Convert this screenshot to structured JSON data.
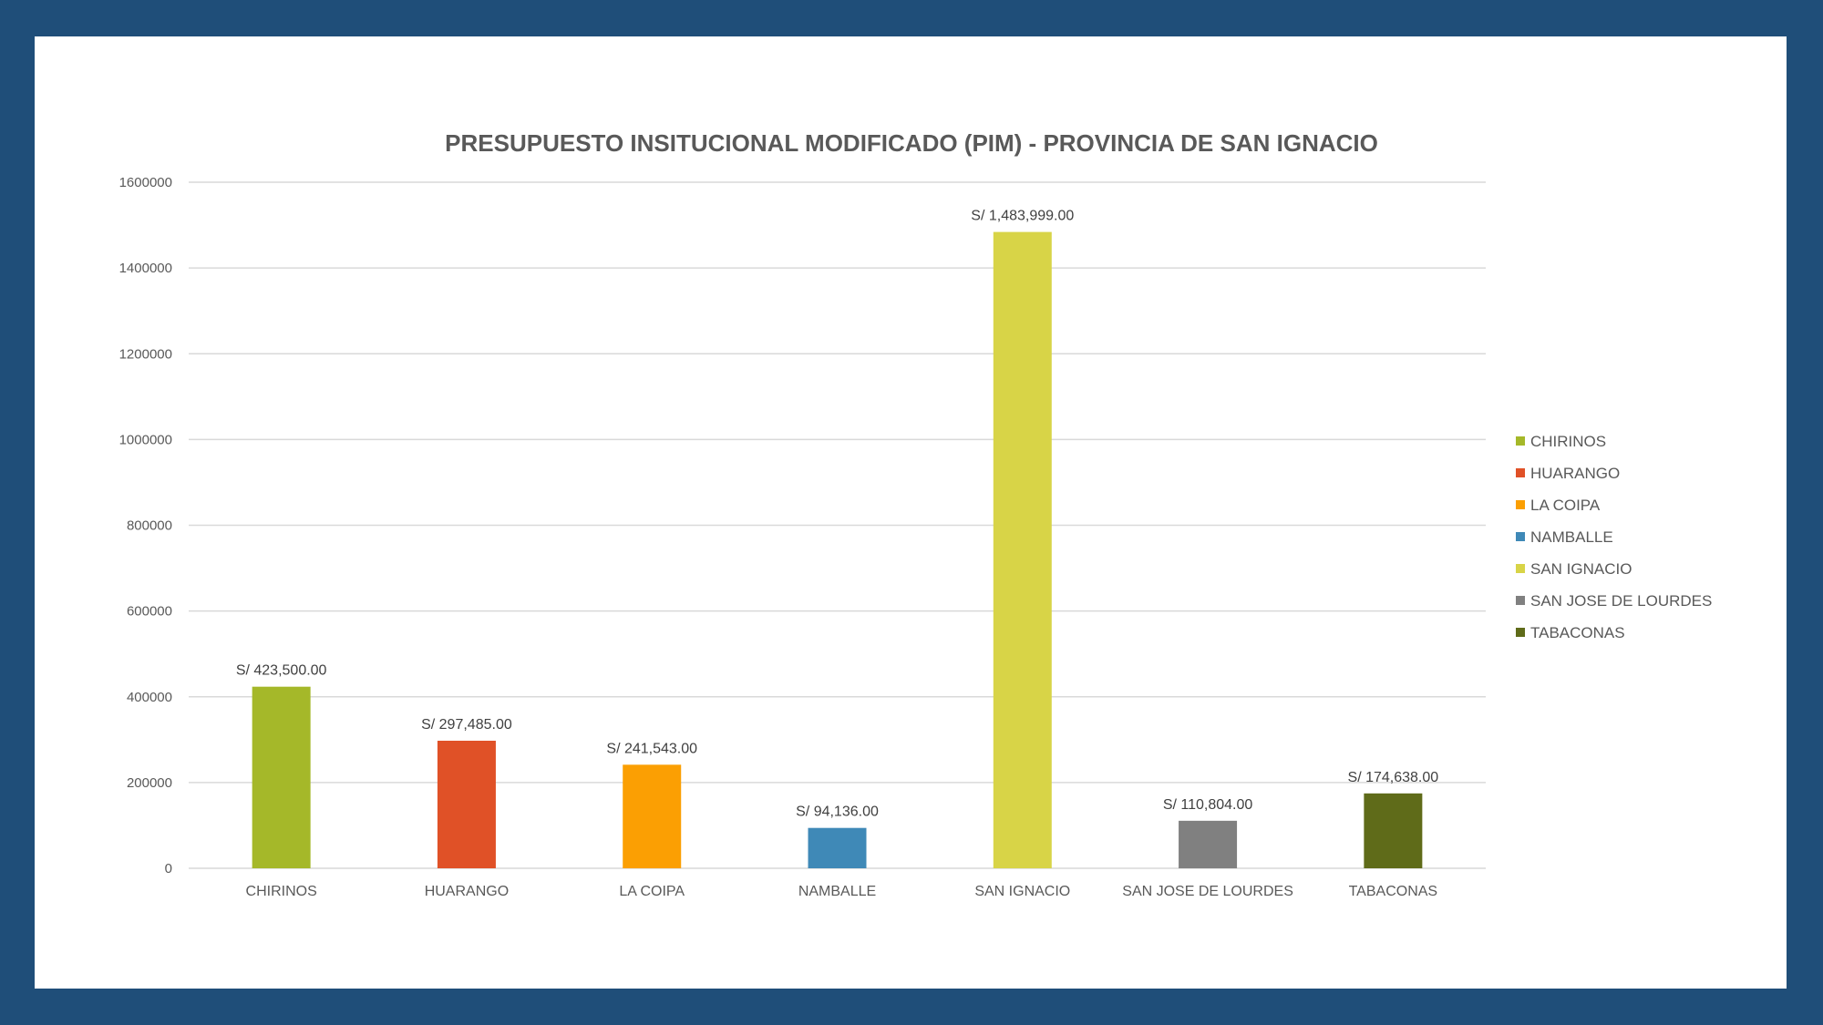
{
  "chart_data": {
    "type": "bar",
    "title": "PRESUPUESTO INSITUCIONAL MODIFICADO (PIM) - PROVINCIA DE SAN IGNACIO",
    "xlabel": "",
    "ylabel": "",
    "ylim": [
      0,
      1600000
    ],
    "yticks": [
      "0",
      "200000",
      "400000",
      "600000",
      "800000",
      "1000000",
      "1200000",
      "1400000",
      "1600000"
    ],
    "grid": true,
    "legend_position": "right",
    "categories": [
      "CHIRINOS",
      "HUARANGO",
      "LA COIPA",
      "NAMBALLE",
      "SAN IGNACIO",
      "SAN JOSE DE LOURDES",
      "TABACONAS"
    ],
    "values": [
      423500,
      297485,
      241543,
      94136,
      1483999,
      110804,
      174638
    ],
    "data_labels": [
      "S/ 423,500.00",
      "S/ 297,485.00",
      "S/ 241,543.00",
      "S/ 94,136.00",
      "S/ 1,483,999.00",
      "S/ 110,804.00",
      "S/ 174,638.00"
    ],
    "colors": [
      "#a5b829",
      "#e05127",
      "#fb9f03",
      "#3f89b7",
      "#d8d447",
      "#808080",
      "#5f6b19"
    ]
  }
}
